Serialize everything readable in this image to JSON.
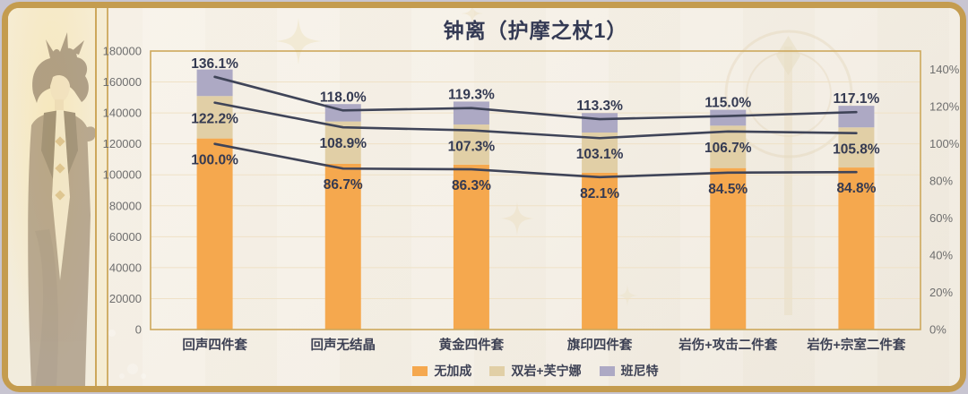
{
  "title": "钟离（护摩之杖1）",
  "chart_data": {
    "type": "bar",
    "subtype": "stacked-column-with-cumulative-percent-lines",
    "title": "钟离（护摩之杖1）",
    "categories": [
      "回声四件套",
      "回声无结晶",
      "黄金四件套",
      "旗印四件套",
      "岩伤+攻击二件套",
      "岩伤+宗室二件套"
    ],
    "series": [
      {
        "name": "无加成",
        "color": "#F5A84E",
        "cumulative_percent": [
          100.0,
          86.7,
          86.3,
          82.1,
          84.5,
          84.8
        ]
      },
      {
        "name": "双岩+芙宁娜",
        "color": "#E1CFA6",
        "cumulative_percent": [
          122.2,
          108.9,
          107.3,
          103.1,
          106.7,
          105.8
        ]
      },
      {
        "name": "班尼特",
        "color": "#ADA9C4",
        "cumulative_percent": [
          136.1,
          118.0,
          119.3,
          113.3,
          115.0,
          117.1
        ]
      }
    ],
    "data_labels": [
      [
        "100.0%",
        "86.7%",
        "86.3%",
        "82.1%",
        "84.5%",
        "84.8%"
      ],
      [
        "122.2%",
        "108.9%",
        "107.3%",
        "103.1%",
        "106.7%",
        "105.8%"
      ],
      [
        "136.1%",
        "118.0%",
        "119.3%",
        "113.3%",
        "115.0%",
        "117.1%"
      ]
    ],
    "left_axis": {
      "min": 0,
      "max": 180000,
      "step": 20000,
      "tick_labels": [
        "0",
        "20000",
        "40000",
        "60000",
        "80000",
        "100000",
        "120000",
        "140000",
        "160000",
        "180000"
      ]
    },
    "right_axis": {
      "min": 0,
      "max": 150,
      "step": 20,
      "unit": "%",
      "tick_labels": [
        "0%",
        "20%",
        "40%",
        "60%",
        "80%",
        "100%",
        "120%",
        "140%"
      ]
    },
    "left_value_per_100_percent": 123500,
    "grid": true,
    "legend_position": "bottom"
  },
  "palette": {
    "line": "#3F4458",
    "label_text": "#343A52",
    "title_text": "#343A54",
    "axis_text": "#6E6E6E",
    "category_text": "#3D4154",
    "gold": "#CDA85C",
    "gridline": "#EFE1C6",
    "background": "#F6F1E8"
  }
}
